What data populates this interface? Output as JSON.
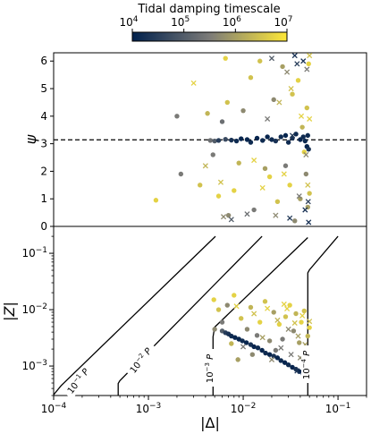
{
  "chart_data": [
    {
      "type": "scatter",
      "colorbar": {
        "label": "Tidal damping timescale",
        "scale": "log",
        "range": [
          10000,
          10000000
        ],
        "colormap": "cividis",
        "colors": [
          "#00204c",
          "#7c7b78",
          "#fee838"
        ],
        "tick_labels": [
          {
            "v": 10000,
            "base": "10",
            "exp": "4"
          },
          {
            "v": 100000,
            "base": "10",
            "exp": "5"
          },
          {
            "v": 1000000,
            "base": "10",
            "exp": "6"
          },
          {
            "v": 10000000,
            "base": "10",
            "exp": "7"
          }
        ]
      },
      "ylabel": "ψ",
      "ylim": [
        0,
        6.3
      ],
      "yticks": [
        0,
        1,
        2,
        3,
        4,
        5,
        6
      ],
      "hline": 3.14159,
      "series": [
        {
          "marker": "circle",
          "points": [
            [
              0.0045,
              3.12,
              200000
            ],
            [
              0.005,
              3.1,
              100000
            ],
            [
              0.0055,
              3.12,
              30000
            ],
            [
              0.0065,
              3.16,
              50000
            ],
            [
              0.0075,
              3.13,
              20000
            ],
            [
              0.0085,
              3.1,
              15000
            ],
            [
              0.0095,
              3.18,
              12000
            ],
            [
              0.011,
              3.15,
              12000
            ],
            [
              0.012,
              3.05,
              15000
            ],
            [
              0.014,
              3.2,
              12000
            ],
            [
              0.016,
              3.12,
              15000
            ],
            [
              0.018,
              3.25,
              12000
            ],
            [
              0.02,
              3.15,
              15000
            ],
            [
              0.022,
              3.1,
              20000
            ],
            [
              0.025,
              3.25,
              15000
            ],
            [
              0.028,
              3.3,
              12000
            ],
            [
              0.03,
              3.05,
              15000
            ],
            [
              0.033,
              3.2,
              20000
            ],
            [
              0.036,
              3.35,
              15000
            ],
            [
              0.04,
              3.15,
              12000
            ],
            [
              0.043,
              3.25,
              15000
            ],
            [
              0.045,
              3.1,
              15000
            ],
            [
              0.047,
              2.9,
              12000
            ],
            [
              0.048,
              3.3,
              15000
            ],
            [
              0.049,
              2.8,
              20000
            ],
            [
              0.0022,
              1.9,
              300000
            ],
            [
              0.0012,
              0.95,
              5000000
            ],
            [
              0.002,
              4.0,
              300000
            ],
            [
              0.0035,
              1.5,
              3000000
            ],
            [
              0.0042,
              4.1,
              2000000
            ],
            [
              0.0048,
              2.6,
              300000
            ],
            [
              0.0055,
              1.1,
              5000000
            ],
            [
              0.006,
              3.8,
              200000
            ],
            [
              0.007,
              0.4,
              500000
            ],
            [
              0.0068,
              4.5,
              3000000
            ],
            [
              0.008,
              1.3,
              5000000
            ],
            [
              0.009,
              2.3,
              2000000
            ],
            [
              0.01,
              4.2,
              500000
            ],
            [
              0.012,
              5.4,
              3000000
            ],
            [
              0.013,
              0.6,
              300000
            ],
            [
              0.015,
              6.0,
              3000000
            ],
            [
              0.017,
              2.1,
              1000000
            ],
            [
              0.019,
              1.8,
              5000000
            ],
            [
              0.021,
              4.6,
              500000
            ],
            [
              0.023,
              0.9,
              3000000
            ],
            [
              0.026,
              5.8,
              1000000
            ],
            [
              0.028,
              2.2,
              300000
            ],
            [
              0.031,
              1.5,
              5000000
            ],
            [
              0.033,
              4.8,
              3000000
            ],
            [
              0.035,
              0.2,
              500000
            ],
            [
              0.038,
              5.3,
              5000000
            ],
            [
              0.04,
              1.0,
              1000000
            ],
            [
              0.042,
              3.6,
              2000000
            ],
            [
              0.044,
              2.7,
              5000000
            ],
            [
              0.046,
              1.9,
              500000
            ],
            [
              0.047,
              4.3,
              3000000
            ],
            [
              0.048,
              0.7,
              1000000
            ],
            [
              0.049,
              5.9,
              5000000
            ],
            [
              0.05,
              1.2,
              3000000
            ],
            [
              0.0065,
              6.1,
              5000000
            ]
          ]
        },
        {
          "marker": "x",
          "points": [
            [
              0.003,
              5.2,
              5000000
            ],
            [
              0.004,
              2.2,
              2000000
            ],
            [
              0.0058,
              1.6,
              3000000
            ],
            [
              0.0062,
              0.35,
              500000
            ],
            [
              0.0075,
              0.25,
              100000
            ],
            [
              0.011,
              0.45,
              200000
            ],
            [
              0.013,
              2.4,
              5000000
            ],
            [
              0.016,
              1.4,
              5000000
            ],
            [
              0.018,
              3.9,
              300000
            ],
            [
              0.02,
              6.1,
              100000
            ],
            [
              0.022,
              0.4,
              500000
            ],
            [
              0.024,
              4.5,
              2000000
            ],
            [
              0.027,
              1.9,
              5000000
            ],
            [
              0.029,
              5.6,
              500000
            ],
            [
              0.031,
              0.3,
              30000
            ],
            [
              0.033,
              3.3,
              30000
            ],
            [
              0.035,
              6.2,
              20000
            ],
            [
              0.037,
              5.9,
              30000
            ],
            [
              0.039,
              1.1,
              300000
            ],
            [
              0.041,
              4.0,
              5000000
            ],
            [
              0.043,
              6.0,
              20000
            ],
            [
              0.045,
              0.6,
              20000
            ],
            [
              0.046,
              2.6,
              500000
            ],
            [
              0.047,
              5.7,
              300000
            ],
            [
              0.048,
              1.5,
              3000000
            ],
            [
              0.049,
              0.15,
              20000
            ],
            [
              0.05,
              3.9,
              5000000
            ],
            [
              0.05,
              6.2,
              3000000
            ],
            [
              0.0485,
              0.9,
              40000
            ],
            [
              0.032,
              5.0,
              3000000
            ]
          ]
        }
      ]
    },
    {
      "type": "scatter",
      "xlabel": "|Δ|",
      "ylabel": "|Z|",
      "xscale": "log",
      "yscale": "log",
      "xlim": [
        0.0001,
        0.2
      ],
      "ylim": [
        0.0003,
        0.3
      ],
      "xticks": [
        {
          "v": 0.0001,
          "base": "10",
          "exp": "−4"
        },
        {
          "v": 0.001,
          "base": "10",
          "exp": "−3"
        },
        {
          "v": 0.01,
          "base": "10",
          "exp": "−2"
        },
        {
          "v": 0.1,
          "base": "10",
          "exp": "−1"
        }
      ],
      "yticks": [
        {
          "v": 0.001,
          "base": "10",
          "exp": "−3"
        },
        {
          "v": 0.01,
          "base": "10",
          "exp": "−2"
        },
        {
          "v": 0.1,
          "base": "10",
          "exp": "−1"
        }
      ],
      "reference_curves": [
        {
          "label_base": "10",
          "label_exp": "−1",
          "label_suffix": " P",
          "points": [
            [
              0.0001,
              0.00031
            ],
            [
              0.00012,
              0.00045
            ],
            [
              0.0051,
              0.2
            ]
          ]
        },
        {
          "label_base": "10",
          "label_exp": "−2",
          "label_suffix": " P",
          "points": [
            [
              0.00048,
              0.0003
            ],
            [
              0.00048,
              0.00049
            ],
            [
              0.0005,
              0.00055
            ],
            [
              0.0158,
              0.2
            ]
          ]
        },
        {
          "label_base": "10",
          "label_exp": "−3",
          "label_suffix": " P",
          "points": [
            [
              0.0048,
              0.0003
            ],
            [
              0.0048,
              0.0033
            ],
            [
              0.005,
              0.0049
            ],
            [
              0.048,
              0.19
            ]
          ]
        },
        {
          "label_base": "10",
          "label_exp": "−4",
          "label_suffix": " P",
          "points": [
            [
              0.048,
              0.0003
            ],
            [
              0.048,
              0.045
            ],
            [
              0.05,
              0.051
            ],
            [
              0.1,
              0.2
            ]
          ]
        }
      ],
      "series": [
        {
          "marker": "circle",
          "points": [
            [
              0.005,
              0.0045,
              500000
            ],
            [
              0.006,
              0.0042,
              100000
            ],
            [
              0.0065,
              0.0039,
              30000
            ],
            [
              0.007,
              0.0037,
              20000
            ],
            [
              0.0075,
              0.0034,
              15000
            ],
            [
              0.0082,
              0.0032,
              12000
            ],
            [
              0.009,
              0.003,
              12000
            ],
            [
              0.0098,
              0.0028,
              15000
            ],
            [
              0.0108,
              0.0026,
              12000
            ],
            [
              0.012,
              0.0024,
              20000
            ],
            [
              0.013,
              0.0022,
              12000
            ],
            [
              0.0143,
              0.0021,
              15000
            ],
            [
              0.0158,
              0.0019,
              12000
            ],
            [
              0.0172,
              0.0017,
              15000
            ],
            [
              0.019,
              0.0016,
              12000
            ],
            [
              0.021,
              0.0015,
              20000
            ],
            [
              0.023,
              0.0014,
              12000
            ],
            [
              0.025,
              0.00125,
              15000
            ],
            [
              0.0275,
              0.00115,
              12000
            ],
            [
              0.03,
              0.00105,
              15000
            ],
            [
              0.033,
              0.00095,
              12000
            ],
            [
              0.036,
              0.00088,
              20000
            ],
            [
              0.039,
              0.0008,
              12000
            ],
            [
              0.043,
              0.00072,
              15000
            ],
            [
              0.047,
              0.00065,
              12000
            ],
            [
              0.0049,
              0.015,
              5000000
            ],
            [
              0.0055,
              0.01,
              3000000
            ],
            [
              0.006,
              0.006,
              300000
            ],
            [
              0.0068,
              0.012,
              500000
            ],
            [
              0.0075,
              0.0025,
              2000000
            ],
            [
              0.008,
              0.018,
              5000000
            ],
            [
              0.0095,
              0.007,
              3000000
            ],
            [
              0.011,
              0.0045,
              500000
            ],
            [
              0.012,
              0.011,
              2000000
            ],
            [
              0.014,
              0.0035,
              300000
            ],
            [
              0.015,
              0.006,
              5000000
            ],
            [
              0.017,
              0.014,
              3000000
            ],
            [
              0.019,
              0.0028,
              500000
            ],
            [
              0.021,
              0.009,
              1000000
            ],
            [
              0.024,
              0.0055,
              5000000
            ],
            [
              0.026,
              0.003,
              300000
            ],
            [
              0.028,
              0.0075,
              3000000
            ],
            [
              0.031,
              0.012,
              5000000
            ],
            [
              0.034,
              0.0042,
              500000
            ],
            [
              0.036,
              0.0085,
              2000000
            ],
            [
              0.039,
              0.0026,
              1000000
            ],
            [
              0.041,
              0.006,
              5000000
            ],
            [
              0.044,
              0.0095,
              3000000
            ],
            [
              0.046,
              0.0018,
              500000
            ],
            [
              0.048,
              0.0034,
              2000000
            ],
            [
              0.049,
              0.0011,
              300000
            ],
            [
              0.05,
              0.0048,
              5000000
            ],
            [
              0.022,
              0.0019,
              300000
            ],
            [
              0.0125,
              0.0016,
              500000
            ],
            [
              0.0088,
              0.0013,
              1000000
            ]
          ]
        },
        {
          "marker": "x",
          "points": [
            [
              0.0085,
              0.0115,
              5000000
            ],
            [
              0.01,
              0.0022,
              300000
            ],
            [
              0.013,
              0.0085,
              3000000
            ],
            [
              0.016,
              0.0032,
              1000000
            ],
            [
              0.018,
              0.0105,
              5000000
            ],
            [
              0.02,
              0.0013,
              500000
            ],
            [
              0.023,
              0.0065,
              2000000
            ],
            [
              0.025,
              0.0021,
              300000
            ],
            [
              0.027,
              0.0125,
              5000000
            ],
            [
              0.03,
              0.0045,
              500000
            ],
            [
              0.032,
              0.0016,
              300000
            ],
            [
              0.035,
              0.0058,
              3000000
            ],
            [
              0.038,
              0.0034,
              1000000
            ],
            [
              0.04,
              0.0014,
              500000
            ],
            [
              0.042,
              0.0078,
              5000000
            ],
            [
              0.045,
              0.0024,
              1000000
            ],
            [
              0.047,
              0.0011,
              300000
            ],
            [
              0.0485,
              0.0007,
              20000
            ],
            [
              0.049,
              0.0009,
              20000
            ],
            [
              0.05,
              0.0062,
              3000000
            ],
            [
              0.05,
              0.00085,
              20000
            ],
            [
              0.0495,
              0.0006,
              30000
            ],
            [
              0.044,
              0.00068,
              20000
            ],
            [
              0.037,
              0.00082,
              20000
            ],
            [
              0.029,
              0.0104,
              5000000
            ]
          ]
        }
      ]
    }
  ]
}
